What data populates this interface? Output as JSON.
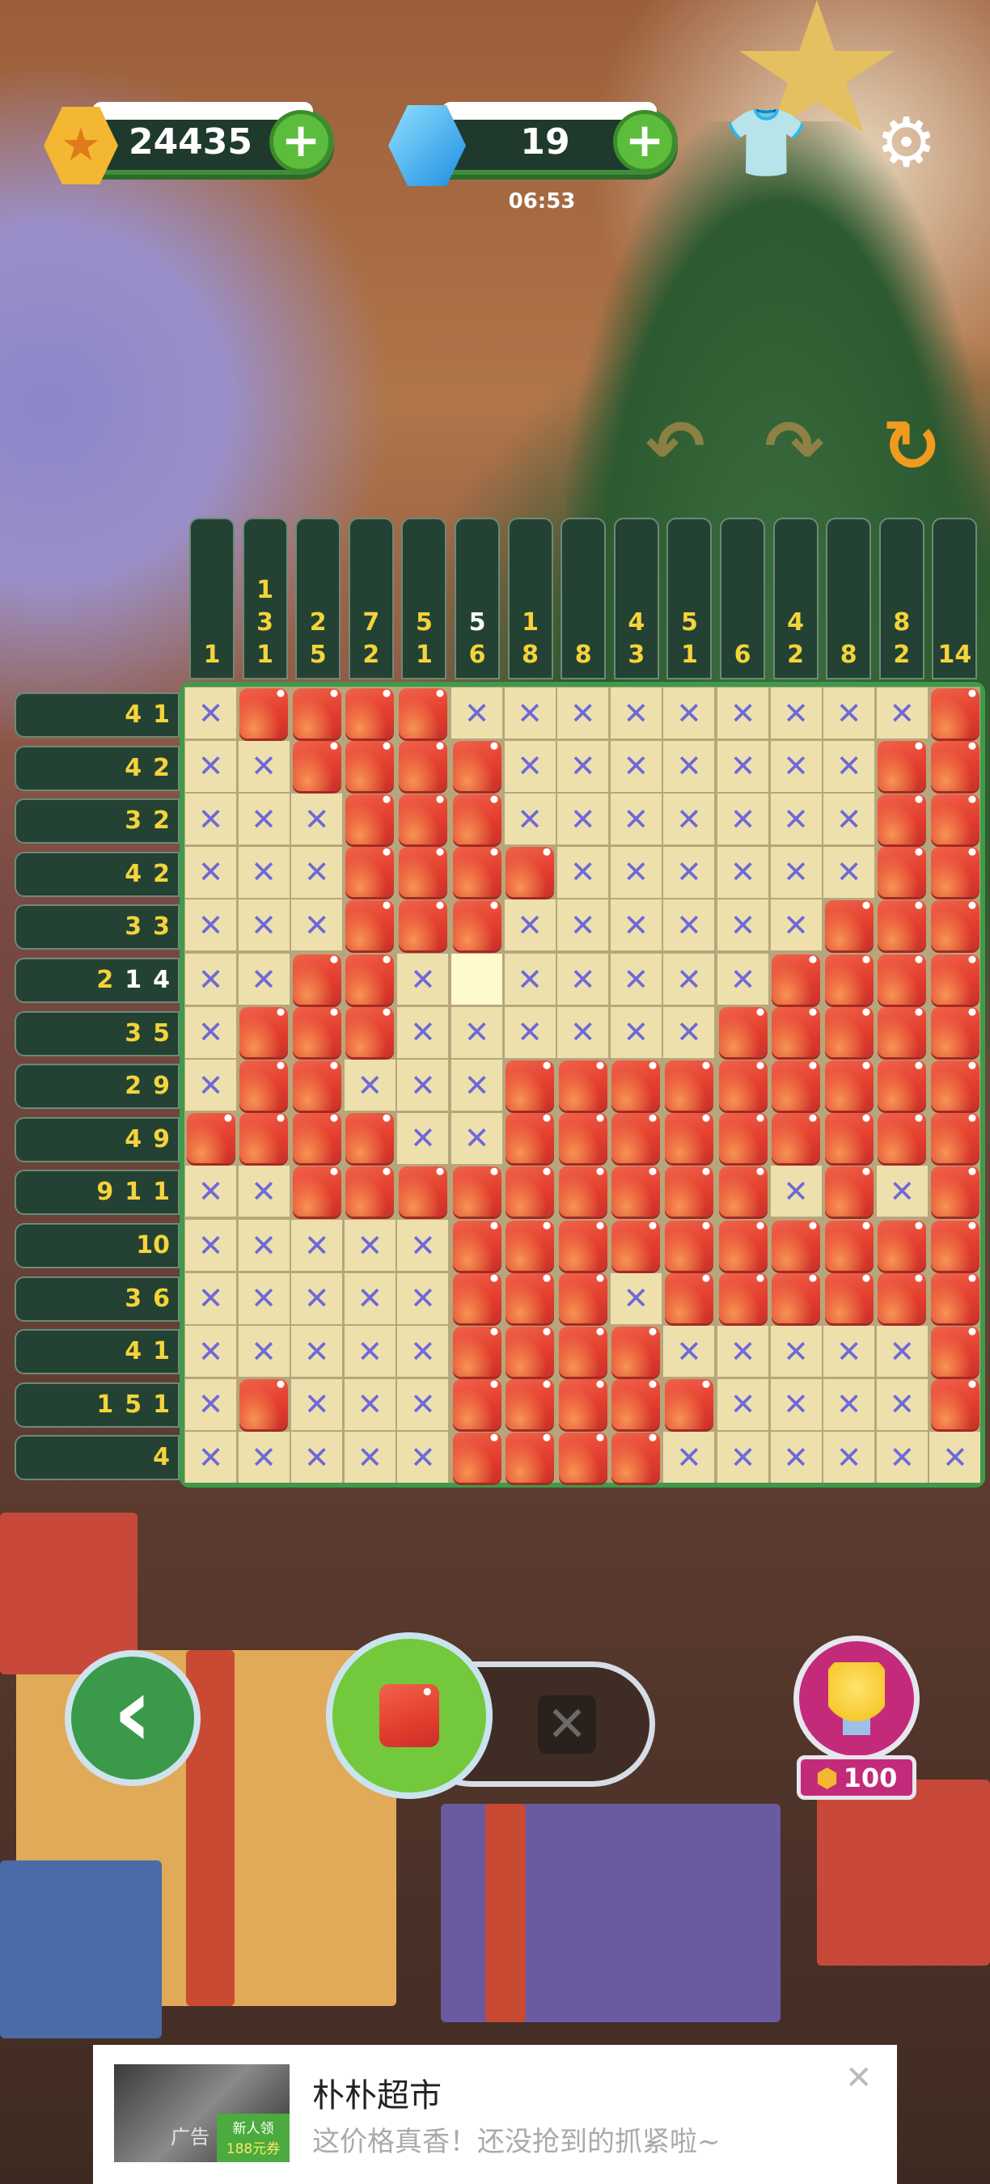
{
  "header": {
    "coins": "24435",
    "gems": "19",
    "timer": "06:53",
    "coin_icon": "star-coin-icon",
    "gem_icon": "gem-icon",
    "add_label": "+",
    "shirt_icon": "shirt-icon",
    "settings_icon": "gear-icon"
  },
  "controls": {
    "undo": "↶",
    "redo": "↷",
    "restart": "↻"
  },
  "puzzle": {
    "size": 15,
    "column_clues": [
      [
        {
          "v": "1"
        }
      ],
      [
        {
          "v": "1"
        },
        {
          "v": "3"
        },
        {
          "v": "1"
        }
      ],
      [
        {
          "v": "2"
        },
        {
          "v": "5"
        }
      ],
      [
        {
          "v": "7"
        },
        {
          "v": "2"
        }
      ],
      [
        {
          "v": "5"
        },
        {
          "v": "1"
        }
      ],
      [
        {
          "v": "5",
          "hl": true
        },
        {
          "v": "6"
        }
      ],
      [
        {
          "v": "1"
        },
        {
          "v": "8"
        }
      ],
      [
        {
          "v": "8"
        }
      ],
      [
        {
          "v": "4"
        },
        {
          "v": "3"
        }
      ],
      [
        {
          "v": "5"
        },
        {
          "v": "1"
        }
      ],
      [
        {
          "v": "6"
        }
      ],
      [
        {
          "v": "4"
        },
        {
          "v": "2"
        }
      ],
      [
        {
          "v": "8"
        }
      ],
      [
        {
          "v": "8"
        },
        {
          "v": "2"
        }
      ],
      [
        {
          "v": "14"
        }
      ]
    ],
    "row_clues": [
      [
        {
          "v": "4"
        },
        {
          "v": "1"
        }
      ],
      [
        {
          "v": "4"
        },
        {
          "v": "2"
        }
      ],
      [
        {
          "v": "3"
        },
        {
          "v": "2"
        }
      ],
      [
        {
          "v": "4"
        },
        {
          "v": "2"
        }
      ],
      [
        {
          "v": "3"
        },
        {
          "v": "3"
        }
      ],
      [
        {
          "v": "2"
        },
        {
          "v": "1",
          "hl": true
        },
        {
          "v": "4",
          "hl": true
        }
      ],
      [
        {
          "v": "3"
        },
        {
          "v": "5"
        }
      ],
      [
        {
          "v": "2"
        },
        {
          "v": "9"
        }
      ],
      [
        {
          "v": "4"
        },
        {
          "v": "9"
        }
      ],
      [
        {
          "v": "9"
        },
        {
          "v": "1"
        },
        {
          "v": "1"
        }
      ],
      [
        {
          "v": "10"
        }
      ],
      [
        {
          "v": "3"
        },
        {
          "v": "6"
        }
      ],
      [
        {
          "v": "4"
        },
        {
          "v": "1"
        }
      ],
      [
        {
          "v": "1"
        },
        {
          "v": "5"
        },
        {
          "v": "1"
        }
      ],
      [
        {
          "v": "4"
        }
      ]
    ],
    "grid_legend": {
      "f": "filled",
      "x": "crossed",
      "e": "empty"
    },
    "grid": [
      "xffffxxxxxxxxxf",
      "xxffffxxxxxxxff",
      "xxxfffxxxxxxxff",
      "xxxffffxxxxxxff",
      "xxxfffxxxxxxfff",
      "xxffxexxxxxffff",
      "xfffxxxxxxfffff",
      "xffxxxfffffffff",
      "ffffxxfffffffff",
      "xxfffffffffxfxf",
      "xxxxxffffffffff",
      "xxxxxfffxffffff",
      "xxxxxffffxxxxxf",
      "xfxxxfffffxxxxf",
      "xxxxxffffxxxxxx"
    ],
    "cross_glyph": "✕",
    "colors": {
      "fill": "#e8412f",
      "cross": "#6d69d8",
      "cell": "#eee0ad",
      "clue": "#f5d33a"
    }
  },
  "bottom": {
    "back": "‹",
    "mode_selected": "fill",
    "mode_cross": "✕",
    "hint_cost": "100",
    "hint_icon": "lightbulb-icon"
  },
  "ad": {
    "title": "朴朴超市",
    "subtitle": "这价格真香！还没抢到的抓紧啦~",
    "tag": "广告",
    "promo": "新人领",
    "coupon": "188元券",
    "close": "✕"
  }
}
